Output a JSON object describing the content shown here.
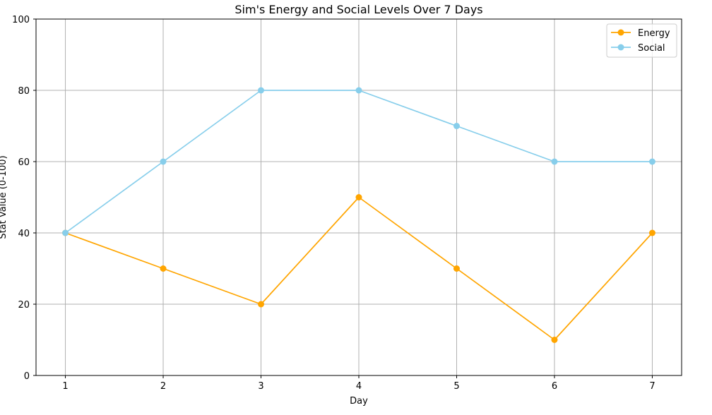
{
  "chart_data": {
    "type": "line",
    "title": "Sim's Energy and Social Levels Over 7 Days",
    "xlabel": "Day",
    "ylabel": "Stat Value (0-100)",
    "x": [
      1,
      2,
      3,
      4,
      5,
      6,
      7
    ],
    "x_tick_labels": [
      "1",
      "2",
      "3",
      "4",
      "5",
      "6",
      "7"
    ],
    "y_ticks": [
      0,
      20,
      40,
      60,
      80,
      100
    ],
    "y_tick_labels": [
      "0",
      "20",
      "40",
      "60",
      "80",
      "100"
    ],
    "xlim": [
      0.7,
      7.3
    ],
    "ylim": [
      0,
      100
    ],
    "grid": true,
    "legend_position": "top-right",
    "series": [
      {
        "name": "Energy",
        "color": "#ffa500",
        "marker": "circle",
        "values": [
          40,
          30,
          20,
          50,
          30,
          10,
          40
        ]
      },
      {
        "name": "Social",
        "color": "#87ceeb",
        "marker": "circle",
        "values": [
          40,
          60,
          80,
          80,
          70,
          60,
          60
        ]
      }
    ]
  }
}
